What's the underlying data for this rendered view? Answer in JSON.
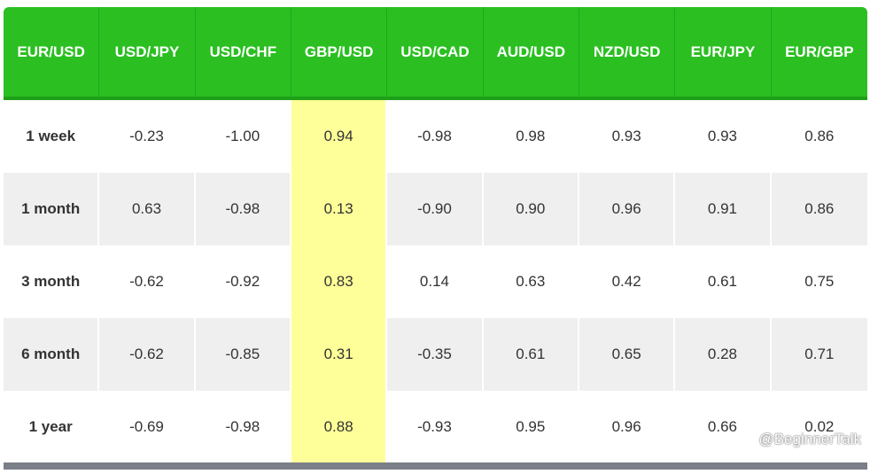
{
  "chart_data": {
    "type": "table",
    "title": "",
    "columns": [
      "EUR/USD",
      "USD/JPY",
      "USD/CHF",
      "GBP/USD",
      "USD/CAD",
      "AUD/USD",
      "NZD/USD",
      "EUR/JPY",
      "EUR/GBP"
    ],
    "highlighted_column": "GBP/USD",
    "rows": [
      {
        "period": "1 week",
        "values": [
          "-0.23",
          "-1.00",
          "0.94",
          "-0.98",
          "0.98",
          "0.93",
          "0.93",
          "0.86"
        ]
      },
      {
        "period": "1 month",
        "values": [
          "0.63",
          "-0.98",
          "0.13",
          "-0.90",
          "0.90",
          "0.96",
          "0.91",
          "0.86"
        ]
      },
      {
        "period": "3 month",
        "values": [
          "-0.62",
          "-0.92",
          "0.83",
          "0.14",
          "0.63",
          "0.42",
          "0.61",
          "0.75"
        ]
      },
      {
        "period": "6 month",
        "values": [
          "-0.62",
          "-0.85",
          "0.31",
          "-0.35",
          "0.61",
          "0.65",
          "0.28",
          "0.71"
        ]
      },
      {
        "period": "1 year",
        "values": [
          "-0.69",
          "-0.98",
          "0.88",
          "-0.93",
          "0.95",
          "0.96",
          "0.66",
          "0.02"
        ]
      }
    ],
    "colors": {
      "header_bg": "#2bbf22",
      "header_text": "#ffffff",
      "highlight": "#ffff99",
      "row_alt": "#efefef",
      "bottom_bar": "#7b7f87"
    }
  },
  "watermark": {
    "text": "@BeginnerTalk",
    "icon": "chat-bubble-icon"
  }
}
